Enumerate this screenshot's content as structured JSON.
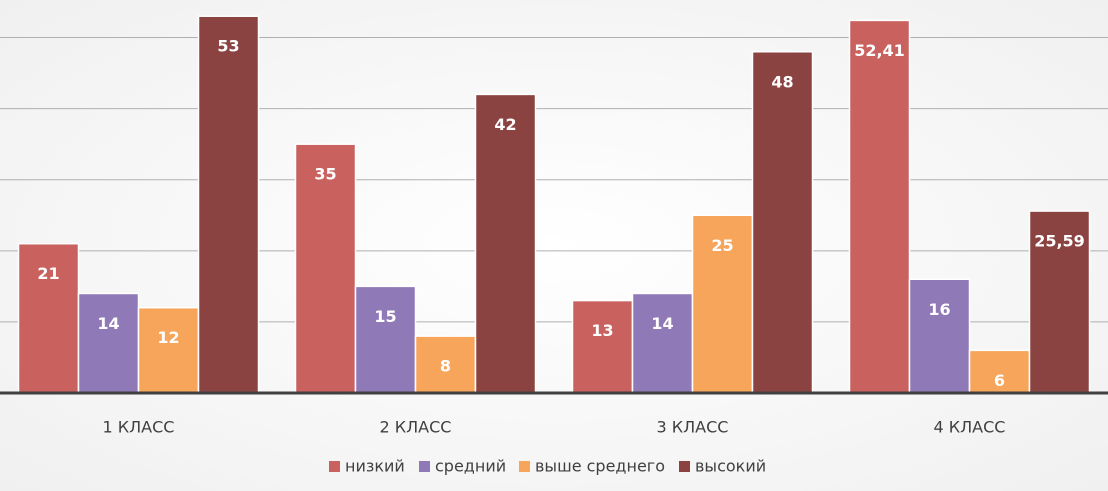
{
  "chart_data": {
    "type": "bar",
    "categories": [
      "1 КЛАСС",
      "2 КЛАСС",
      "3 КЛАСС",
      "4 КЛАСС"
    ],
    "series": [
      {
        "name": "низкий",
        "color": "#c9625f",
        "values": [
          21,
          35,
          13,
          52.41
        ],
        "value_labels": [
          "21",
          "35",
          "13",
          "52,41"
        ]
      },
      {
        "name": "средний",
        "color": "#8f79b6",
        "values": [
          14,
          15,
          14,
          16
        ],
        "value_labels": [
          "14",
          "15",
          "14",
          "16"
        ]
      },
      {
        "name": "выше среднего",
        "color": "#f6a55b",
        "values": [
          12,
          8,
          25,
          6
        ],
        "value_labels": [
          "12",
          "8",
          "25",
          "6"
        ]
      },
      {
        "name": "высокий",
        "color": "#8b4341",
        "values": [
          53,
          42,
          48,
          25.59
        ],
        "value_labels": [
          "53",
          "42",
          "48",
          "25,59"
        ]
      }
    ],
    "ylim": [
      0,
      55
    ],
    "yticks": [
      0,
      10,
      20,
      30,
      40,
      50
    ],
    "grid": true,
    "legend": "bottom"
  }
}
